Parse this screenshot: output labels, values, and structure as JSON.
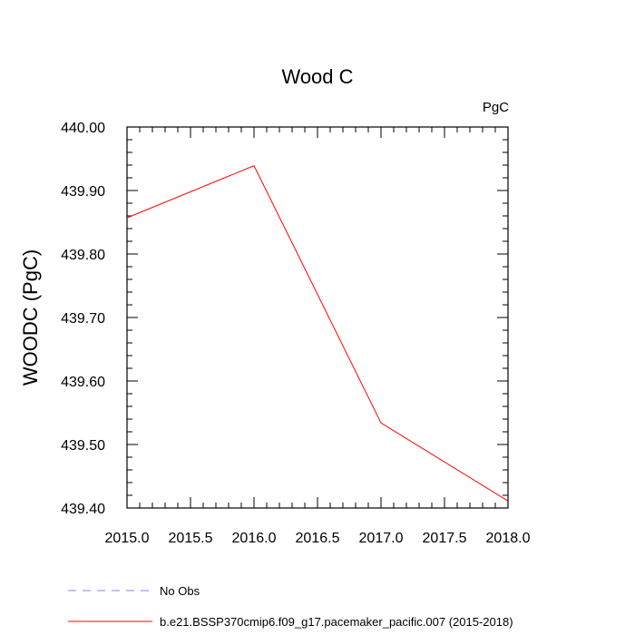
{
  "chart_data": {
    "type": "line",
    "title": "Wood C",
    "units": "PgC",
    "ylabel": "WOODC  (PgC)",
    "xlabel": "",
    "xlim": [
      2015.0,
      2018.0
    ],
    "ylim": [
      439.4,
      440.0
    ],
    "xticks": [
      "2015.0",
      "2015.5",
      "2016.0",
      "2016.5",
      "2017.0",
      "2017.5",
      "2018.0"
    ],
    "yticks": [
      "439.40",
      "439.50",
      "439.60",
      "439.70",
      "439.80",
      "439.90",
      "440.00"
    ],
    "grid": false,
    "legend_position": "bottom",
    "series": [
      {
        "name": "No Obs",
        "color": "#8080ff",
        "style": "dashed",
        "x": [],
        "y": []
      },
      {
        "name": "b.e21.BSSP370cmip6.f09_g17.pacemaker_pacific.007 (2015-2018)",
        "color": "#ff0000",
        "style": "solid",
        "x": [
          2015.0,
          2016.0,
          2017.0,
          2018.0
        ],
        "y": [
          439.857,
          439.939,
          439.534,
          439.411
        ]
      }
    ]
  }
}
